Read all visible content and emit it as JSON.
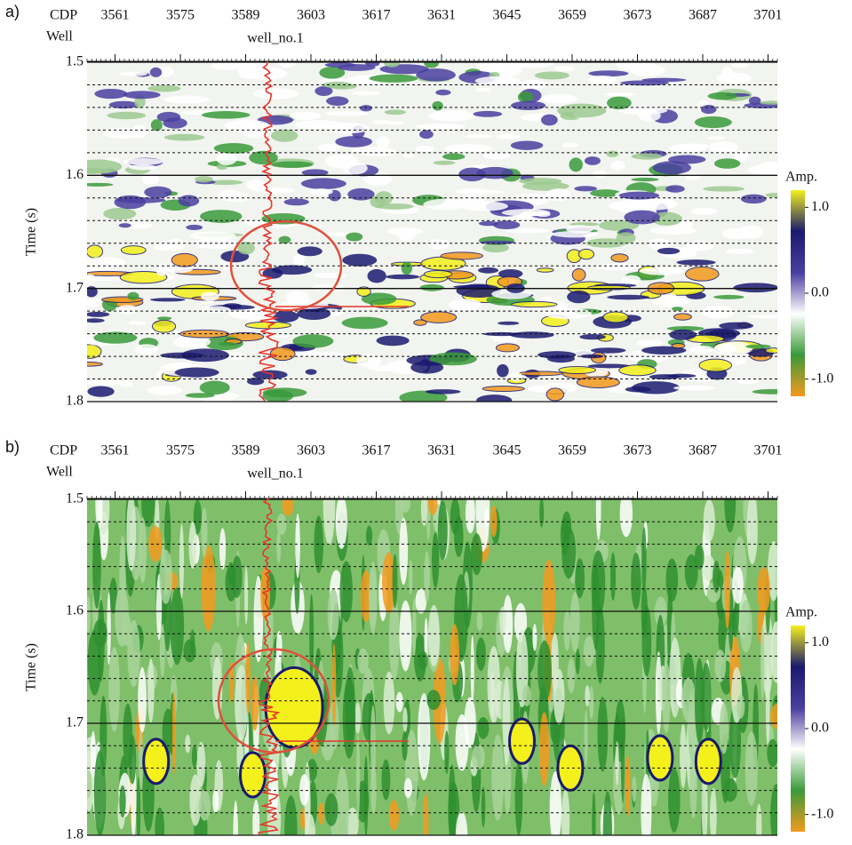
{
  "chart_data": [
    {
      "type": "seismic",
      "panel_label": "a)",
      "xlabel": "CDP",
      "row_label": "Well",
      "well_label": "well_no.1",
      "xlim": [
        3555,
        3703
      ],
      "xticks": [
        3561,
        3575,
        3589,
        3603,
        3617,
        3631,
        3645,
        3659,
        3673,
        3687,
        3701
      ],
      "ylabel": "Time (s)",
      "ylim": [
        1.5,
        1.8
      ],
      "yticks": [
        1.5,
        1.6,
        1.7,
        1.8
      ],
      "grid": true,
      "colorbar": {
        "title": "Amp.",
        "clim": [
          -1.2,
          1.2
        ],
        "ticks": [
          {
            "value": 1,
            "label": "1.0"
          },
          {
            "value": 0,
            "label": "0.0"
          },
          {
            "value": -1,
            "label": "-1.0"
          }
        ],
        "colors": [
          "#f39a1e",
          "#3a9a3a",
          "#ffffff",
          "#4a3ea0",
          "#1a1a6e",
          "#f4f01c"
        ]
      }
    },
    {
      "type": "seismic",
      "panel_label": "b)",
      "xlabel": "CDP",
      "row_label": "Well",
      "well_label": "well_no.1",
      "xlim": [
        3555,
        3703
      ],
      "xticks": [
        3561,
        3575,
        3589,
        3603,
        3617,
        3631,
        3645,
        3659,
        3673,
        3687,
        3701
      ],
      "ylabel": "Time (s)",
      "ylim": [
        1.5,
        1.8
      ],
      "yticks": [
        1.5,
        1.6,
        1.7,
        1.8
      ],
      "grid": true,
      "colorbar": {
        "title": "Amp.",
        "clim": [
          -1.2,
          1.2
        ],
        "ticks": [
          {
            "value": 1,
            "label": "1.0"
          },
          {
            "value": 0,
            "label": "0.0"
          },
          {
            "value": -1,
            "label": "-1.0"
          }
        ],
        "colors": [
          "#f39a1e",
          "#3a9a3a",
          "#ffffff",
          "#4a3ea0",
          "#1a1a6e",
          "#f4f01c"
        ]
      }
    }
  ]
}
